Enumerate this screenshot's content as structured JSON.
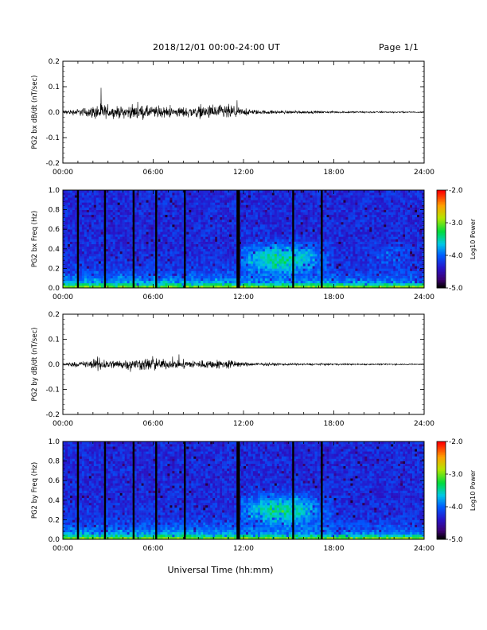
{
  "header": {
    "title": "2018/12/01  00:00-24:00 UT",
    "page": "Page 1/1"
  },
  "xaxis_label": "Universal Time (hh:mm)",
  "chart_data": [
    {
      "type": "line",
      "ylabel": "PG2 bx dB/dt (nT/sec)",
      "xlim": [
        0,
        24
      ],
      "ylim": [
        -0.2,
        0.2
      ],
      "x_ticks": [
        "00:00",
        "06:00",
        "12:00",
        "18:00",
        "24:00"
      ],
      "y_ticks": [
        "-0.2",
        "-0.1",
        "0.0",
        "0.1",
        "0.2"
      ],
      "envelope": {
        "hours": [
          0,
          1,
          2,
          2.5,
          3,
          4,
          5,
          6,
          7,
          8,
          9,
          10,
          11,
          12,
          13,
          14,
          16,
          18,
          20,
          22,
          24
        ],
        "amplitude": [
          0.012,
          0.02,
          0.035,
          0.06,
          0.03,
          0.035,
          0.04,
          0.035,
          0.03,
          0.03,
          0.035,
          0.04,
          0.045,
          0.02,
          0.012,
          0.01,
          0.008,
          0.006,
          0.005,
          0.004,
          0.003
        ]
      }
    },
    {
      "type": "heatmap",
      "ylabel": "PG2 bx Freq (Hz)",
      "xlim": [
        0,
        24
      ],
      "ylim": [
        0,
        1.0
      ],
      "x_ticks": [
        "00:00",
        "06:00",
        "12:00",
        "18:00",
        "24:00"
      ],
      "y_ticks": [
        "0.0",
        "0.2",
        "0.4",
        "0.6",
        "0.8",
        "1.0"
      ],
      "colorbar_label": "Log10 Power",
      "colorbar_ticks": [
        "-2.0",
        "-3.0",
        "-4.0",
        "-5.0"
      ],
      "gap_lines_hours": [
        1.0,
        2.8,
        4.7,
        6.2,
        8.1,
        11.6,
        11.7,
        15.3,
        17.2
      ]
    },
    {
      "type": "line",
      "ylabel": "PG2 by dB/dt (nT/sec)",
      "xlim": [
        0,
        24
      ],
      "ylim": [
        -0.2,
        0.2
      ],
      "x_ticks": [
        "00:00",
        "06:00",
        "12:00",
        "18:00",
        "24:00"
      ],
      "y_ticks": [
        "-0.2",
        "-0.1",
        "0.0",
        "0.1",
        "0.2"
      ],
      "envelope": {
        "hours": [
          0,
          1,
          2,
          2.5,
          3,
          4,
          5,
          6,
          7,
          8,
          9,
          10,
          11,
          12,
          13,
          14,
          16,
          18,
          20,
          22,
          24
        ],
        "amplitude": [
          0.01,
          0.015,
          0.025,
          0.05,
          0.025,
          0.03,
          0.035,
          0.04,
          0.025,
          0.025,
          0.025,
          0.025,
          0.03,
          0.012,
          0.01,
          0.008,
          0.006,
          0.005,
          0.004,
          0.004,
          0.003
        ]
      }
    },
    {
      "type": "heatmap",
      "ylabel": "PG2 by Freq (Hz)",
      "xlim": [
        0,
        24
      ],
      "ylim": [
        0,
        1.0
      ],
      "x_ticks": [
        "00:00",
        "06:00",
        "12:00",
        "18:00",
        "24:00"
      ],
      "y_ticks": [
        "0.0",
        "0.2",
        "0.4",
        "0.6",
        "0.8",
        "1.0"
      ],
      "colorbar_label": "Log10 Power",
      "colorbar_ticks": [
        "-2.0",
        "-3.0",
        "-4.0",
        "-5.0"
      ],
      "gap_lines_hours": [
        1.0,
        2.8,
        4.7,
        6.2,
        8.1,
        11.6,
        11.7,
        15.3,
        17.2
      ]
    }
  ]
}
